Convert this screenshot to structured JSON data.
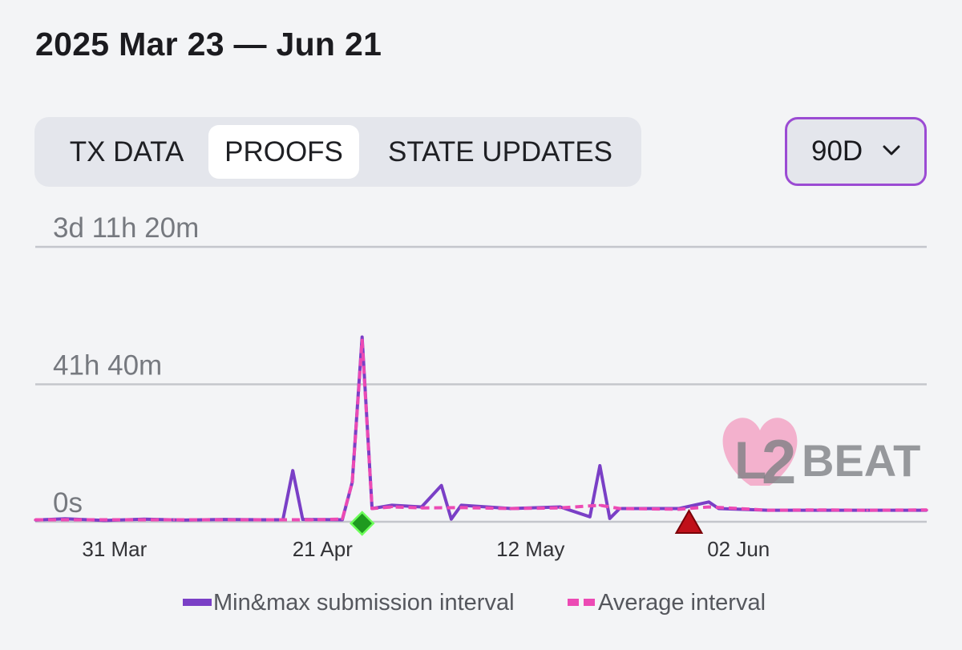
{
  "header": {
    "title": "2025 Mar 23 — Jun 21"
  },
  "tabs": [
    {
      "label": "TX DATA",
      "active": false
    },
    {
      "label": "PROOFS",
      "active": true
    },
    {
      "label": "STATE UPDATES",
      "active": false
    }
  ],
  "range_select": {
    "value": "90D",
    "icon": "chevron-down-icon"
  },
  "watermark": {
    "text": "L2BEAT"
  },
  "colors": {
    "minmax": "#7a3fc6",
    "average": "#ec4ab4",
    "gridline": "#c4c6cc",
    "marker_ok": "#1f9a1f",
    "marker_warn": "#c0101a"
  },
  "chart_data": {
    "type": "line",
    "y_axis": {
      "ticks": [
        {
          "label": "0s",
          "value_hours": 0
        },
        {
          "label": "41h 40m",
          "value_hours": 41.6667
        },
        {
          "label": "3d 11h 20m",
          "value_hours": 83.3333
        }
      ],
      "ylim_hours": [
        0,
        83.3333
      ]
    },
    "x_axis": {
      "range": [
        "2025-03-23",
        "2025-06-21"
      ],
      "tick_labels": [
        {
          "label": "31 Mar",
          "date": "2025-03-31"
        },
        {
          "label": "21 Apr",
          "date": "2025-04-21"
        },
        {
          "label": "12 May",
          "date": "2025-05-12"
        },
        {
          "label": "02 Jun",
          "date": "2025-06-02"
        }
      ]
    },
    "grid": true,
    "legend_position": "bottom",
    "series": [
      {
        "name": "Min&max submission interval",
        "style": "solid",
        "points": [
          [
            "2025-03-23",
            0.5
          ],
          [
            "2025-03-26",
            0.9
          ],
          [
            "2025-03-30",
            0.4
          ],
          [
            "2025-04-03",
            0.8
          ],
          [
            "2025-04-07",
            0.5
          ],
          [
            "2025-04-11",
            0.7
          ],
          [
            "2025-04-15",
            0.6
          ],
          [
            "2025-04-17",
            0.6
          ],
          [
            "2025-04-18",
            15.5
          ],
          [
            "2025-04-19",
            0.7
          ],
          [
            "2025-04-23",
            0.6
          ],
          [
            "2025-04-24",
            12
          ],
          [
            "2025-04-25",
            56
          ],
          [
            "2025-04-26",
            4
          ],
          [
            "2025-04-28",
            5
          ],
          [
            "2025-05-01",
            4.5
          ],
          [
            "2025-05-03",
            11
          ],
          [
            "2025-05-04",
            0.8
          ],
          [
            "2025-05-05",
            5
          ],
          [
            "2025-05-10",
            4
          ],
          [
            "2025-05-15",
            4.5
          ],
          [
            "2025-05-18",
            1.5
          ],
          [
            "2025-05-19",
            17
          ],
          [
            "2025-05-20",
            1
          ],
          [
            "2025-05-21",
            4
          ],
          [
            "2025-05-27",
            4
          ],
          [
            "2025-05-30",
            6
          ],
          [
            "2025-05-31",
            4
          ],
          [
            "2025-06-05",
            3.5
          ],
          [
            "2025-06-10",
            3.5
          ],
          [
            "2025-06-15",
            3.5
          ],
          [
            "2025-06-21",
            3.5
          ]
        ]
      },
      {
        "name": "Average interval",
        "style": "dashed",
        "points": [
          [
            "2025-03-23",
            0.6
          ],
          [
            "2025-03-30",
            0.6
          ],
          [
            "2025-04-06",
            0.6
          ],
          [
            "2025-04-13",
            0.6
          ],
          [
            "2025-04-20",
            0.6
          ],
          [
            "2025-04-23",
            0.8
          ],
          [
            "2025-04-24",
            12
          ],
          [
            "2025-04-25",
            55
          ],
          [
            "2025-04-26",
            4
          ],
          [
            "2025-04-28",
            4.5
          ],
          [
            "2025-05-01",
            4.2
          ],
          [
            "2025-05-05",
            4.3
          ],
          [
            "2025-05-10",
            4
          ],
          [
            "2025-05-15",
            4.2
          ],
          [
            "2025-05-19",
            5
          ],
          [
            "2025-05-21",
            4
          ],
          [
            "2025-05-27",
            3.8
          ],
          [
            "2025-05-30",
            4.5
          ],
          [
            "2025-06-05",
            3.5
          ],
          [
            "2025-06-10",
            3.6
          ],
          [
            "2025-06-15",
            3.5
          ],
          [
            "2025-06-21",
            3.6
          ]
        ]
      }
    ],
    "event_markers": [
      {
        "date": "2025-04-25",
        "shape": "diamond",
        "color": "#1f9a1f"
      },
      {
        "date": "2025-05-28",
        "shape": "triangle",
        "color": "#c0101a"
      }
    ]
  }
}
